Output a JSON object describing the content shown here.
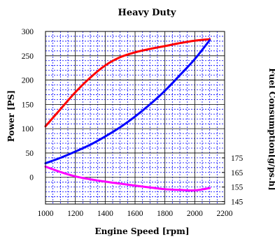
{
  "chart_data": {
    "type": "line",
    "title": "Heavy Duty",
    "xlabel": "Engine Speed [rpm]",
    "ylabel": "Power [PS]",
    "y2label": "Fuel Consumption[g/ps.h]",
    "xlim": [
      1000,
      2200
    ],
    "ylim": [
      -55,
      300
    ],
    "x_ticks": [
      "1000",
      "1200",
      "1400",
      "1600",
      "1800",
      "2000",
      "2200"
    ],
    "y_ticks": [
      "0",
      "50",
      "100",
      "150",
      "200",
      "250",
      "300"
    ],
    "y2_ticks": [
      "145",
      "155",
      "165",
      "175"
    ],
    "y2_tick_positions_power_units": [
      -50,
      -20,
      10,
      40
    ],
    "y2_note": "secondary axis: 175 g/ps.h aligns with 40 PS, 145 g/ps.h with -50 PS (3 PS per g/ps.h)",
    "grid": true,
    "series": [
      {
        "color": "#ff0000",
        "axis": "left",
        "x": [
          1000,
          1100,
          1200,
          1300,
          1400,
          1500,
          1600,
          1700,
          1800,
          1900,
          2000,
          2100
        ],
        "y": [
          105,
          140,
          175,
          205,
          230,
          247,
          257,
          264,
          270,
          276,
          281,
          284
        ]
      },
      {
        "color": "#0000ff",
        "axis": "left",
        "x": [
          1000,
          1100,
          1200,
          1300,
          1400,
          1500,
          1600,
          1700,
          1800,
          1900,
          2000,
          2100
        ],
        "y": [
          29,
          40,
          53,
          67,
          84,
          103,
          125,
          150,
          178,
          210,
          243,
          282
        ]
      },
      {
        "color": "#ff00ff",
        "axis": "right",
        "x": [
          1000,
          1100,
          1200,
          1300,
          1400,
          1500,
          1600,
          1700,
          1800,
          1900,
          2000,
          2100
        ],
        "y": [
          169,
          165.3,
          162.3,
          160.3,
          158.7,
          157.3,
          156,
          154.7,
          153.5,
          153,
          152.7,
          154.3
        ]
      }
    ],
    "colors": {
      "background": "#ffffff",
      "major_grid": "#000000",
      "minor_grid": "#0000ff"
    }
  }
}
